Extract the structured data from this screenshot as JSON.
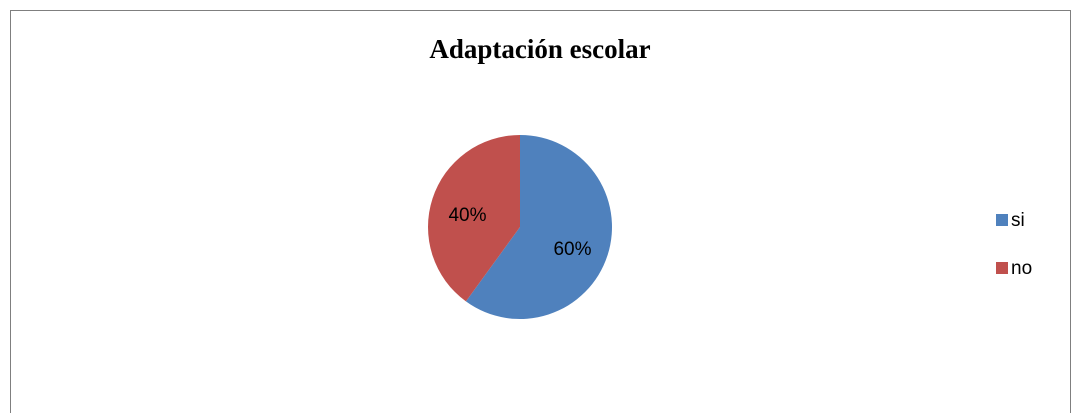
{
  "chart_data": {
    "type": "pie",
    "title": "Adaptación escolar",
    "categories": [
      "si",
      "no"
    ],
    "values": [
      60,
      40
    ],
    "value_labels": [
      "60%",
      "40%"
    ],
    "colors": [
      "#4f81bd",
      "#c0504d"
    ],
    "legend": "right"
  }
}
